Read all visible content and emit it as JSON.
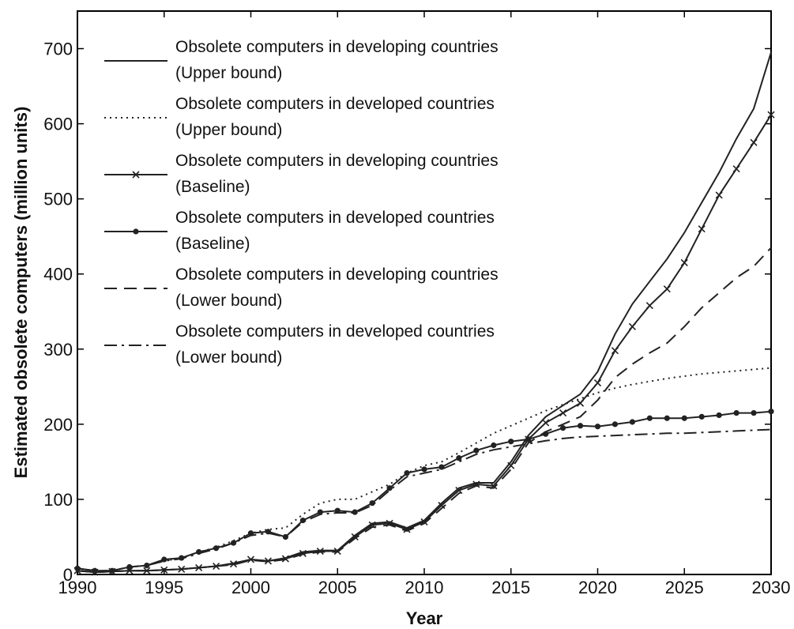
{
  "chart_data": {
    "type": "line",
    "title": "",
    "xlabel": "Year",
    "ylabel": "Estimated obsolete computers (million units)",
    "xlim": [
      1990,
      2030
    ],
    "ylim": [
      0,
      750
    ],
    "xticks": [
      1990,
      1995,
      2000,
      2005,
      2010,
      2015,
      2020,
      2025,
      2030
    ],
    "yticks": [
      0,
      100,
      200,
      300,
      400,
      500,
      600,
      700
    ],
    "grid": false,
    "legend_position": "top-left",
    "x": [
      1990,
      1991,
      1992,
      1993,
      1994,
      1995,
      1996,
      1997,
      1998,
      1999,
      2000,
      2001,
      2002,
      2003,
      2004,
      2005,
      2006,
      2007,
      2008,
      2009,
      2010,
      2011,
      2012,
      2013,
      2014,
      2015,
      2016,
      2017,
      2018,
      2019,
      2020,
      2021,
      2022,
      2023,
      2024,
      2025,
      2026,
      2027,
      2028,
      2029,
      2030
    ],
    "series": [
      {
        "name": "Obsolete computers in developing countries (Upper bound)",
        "legend_lines": [
          "Obsolete computers in developing countries",
          "(Upper bound)"
        ],
        "style": "solid",
        "marker": "none",
        "values": [
          5,
          3,
          4,
          5,
          5,
          6,
          7,
          9,
          11,
          15,
          20,
          18,
          22,
          30,
          32,
          32,
          52,
          68,
          70,
          62,
          72,
          95,
          115,
          122,
          122,
          150,
          185,
          210,
          225,
          240,
          270,
          320,
          360,
          390,
          420,
          455,
          495,
          535,
          580,
          620,
          695
        ]
      },
      {
        "name": "Obsolete computers in developed countries (Upper bound)",
        "legend_lines": [
          "Obsolete computers in developed countries",
          "(Upper bound)"
        ],
        "style": "dotted",
        "marker": "none",
        "values": [
          8,
          5,
          5,
          10,
          12,
          18,
          22,
          30,
          36,
          45,
          55,
          60,
          62,
          80,
          95,
          100,
          100,
          110,
          120,
          135,
          145,
          150,
          162,
          175,
          188,
          198,
          208,
          218,
          226,
          234,
          242,
          248,
          253,
          257,
          261,
          264,
          267,
          269,
          271,
          273,
          275
        ]
      },
      {
        "name": "Obsolete computers in developing countries (Baseline)",
        "legend_lines": [
          "Obsolete computers in developing countries",
          "(Baseline)"
        ],
        "style": "solid",
        "marker": "x",
        "values": [
          5,
          3,
          4,
          5,
          5,
          6,
          7,
          9,
          11,
          14,
          20,
          18,
          21,
          28,
          31,
          31,
          50,
          66,
          68,
          60,
          70,
          92,
          112,
          120,
          118,
          145,
          180,
          202,
          215,
          228,
          255,
          298,
          330,
          358,
          380,
          415,
          460,
          505,
          540,
          575,
          612
        ]
      },
      {
        "name": "Obsolete computers in developed countries (Baseline)",
        "legend_lines": [
          "Obsolete computers in developed countries",
          "(Baseline)"
        ],
        "style": "solid",
        "marker": "dot",
        "values": [
          8,
          5,
          5,
          10,
          12,
          20,
          22,
          30,
          35,
          42,
          55,
          57,
          50,
          72,
          83,
          85,
          83,
          95,
          115,
          135,
          140,
          143,
          155,
          165,
          172,
          177,
          180,
          187,
          195,
          198,
          197,
          200,
          203,
          208,
          208,
          208,
          210,
          212,
          215,
          215,
          217
        ]
      },
      {
        "name": "Obsolete computers in developing countries (Lower bound)",
        "legend_lines": [
          "Obsolete computers in developing countries",
          "(Lower bound)"
        ],
        "style": "dashed",
        "marker": "none",
        "values": [
          5,
          3,
          4,
          5,
          5,
          6,
          7,
          9,
          11,
          13,
          19,
          17,
          20,
          27,
          30,
          30,
          48,
          63,
          66,
          58,
          68,
          88,
          108,
          118,
          115,
          140,
          175,
          190,
          200,
          210,
          232,
          262,
          280,
          295,
          308,
          330,
          355,
          375,
          395,
          410,
          435
        ]
      },
      {
        "name": "Obsolete computers in developed countries (Lower bound)",
        "legend_lines": [
          "Obsolete computers in developed countries",
          "(Lower bound)"
        ],
        "style": "dashdot",
        "marker": "none",
        "values": [
          8,
          5,
          5,
          10,
          12,
          18,
          21,
          28,
          34,
          42,
          52,
          55,
          50,
          70,
          80,
          82,
          82,
          92,
          112,
          130,
          135,
          140,
          150,
          160,
          166,
          170,
          174,
          178,
          181,
          183,
          184,
          185,
          186,
          187,
          188,
          188,
          189,
          190,
          191,
          192,
          193
        ]
      }
    ]
  }
}
